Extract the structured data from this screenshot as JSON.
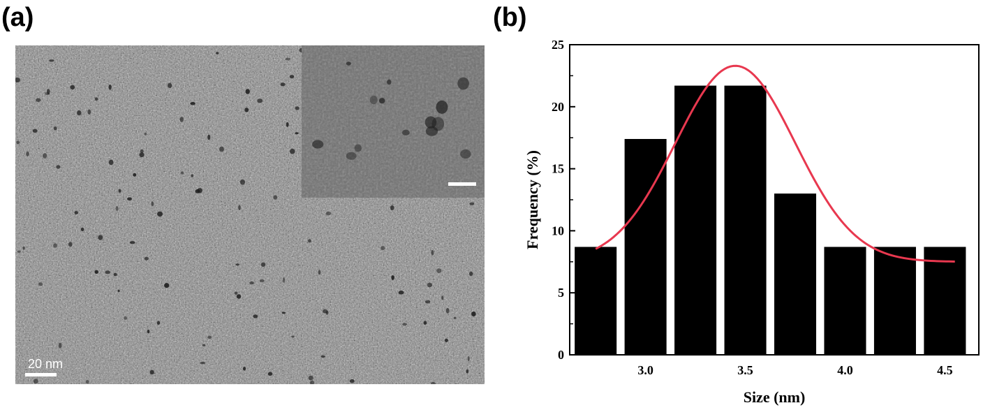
{
  "panels": {
    "a_label": "(a)",
    "b_label": "(b)"
  },
  "tem_image": {
    "scale_bar_label": "20 nm",
    "has_inset": true,
    "colors": {
      "background": "#8c8c8c",
      "inset_background": "#6f6f6f",
      "particle": "#1e1e1e",
      "scale_bar": "#ffffff"
    }
  },
  "chart_data": {
    "type": "bar",
    "xlabel": "Size (nm)",
    "ylabel": "Frequency (%)",
    "x_ticks": [
      "3.0",
      "3.5",
      "4.0",
      "4.5"
    ],
    "y_ticks": [
      "0",
      "5",
      "10",
      "15",
      "20",
      "25"
    ],
    "xlim": [
      2.62,
      4.67
    ],
    "ylim": [
      0,
      25
    ],
    "grid": false,
    "bars": {
      "centers": [
        2.75,
        3.0,
        3.25,
        3.5,
        3.75,
        4.0,
        4.25,
        4.5
      ],
      "values": [
        8.7,
        17.4,
        21.7,
        21.7,
        13.0,
        8.7,
        8.7,
        8.7
      ],
      "color": "#000000"
    },
    "fit_curve": {
      "type": "gaussian",
      "x_range": [
        2.75,
        4.55
      ],
      "baseline": 7.5,
      "amplitude": 15.8,
      "center": 3.45,
      "sigma": 0.3,
      "color": "#e8384f"
    }
  }
}
